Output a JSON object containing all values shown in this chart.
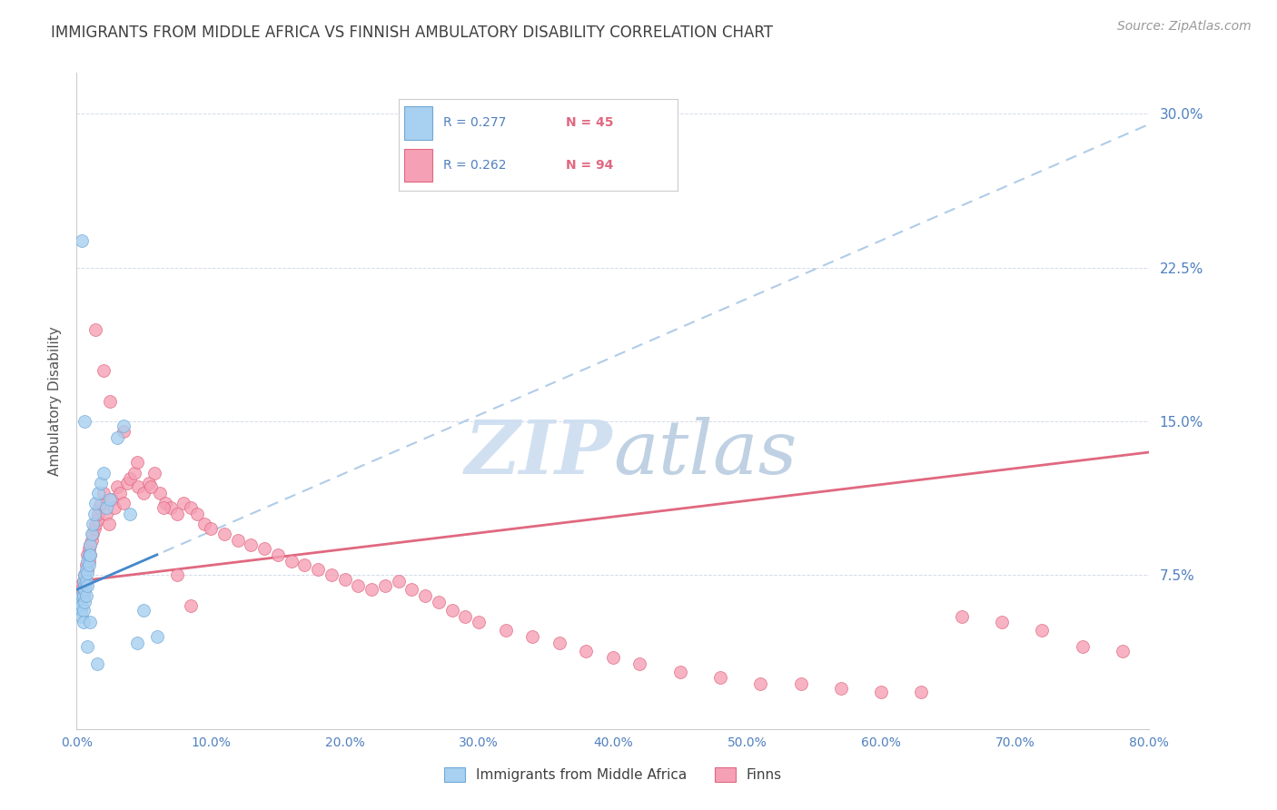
{
  "title": "IMMIGRANTS FROM MIDDLE AFRICA VS FINNISH AMBULATORY DISABILITY CORRELATION CHART",
  "source": "Source: ZipAtlas.com",
  "ylabel": "Ambulatory Disability",
  "xlim": [
    0.0,
    0.8
  ],
  "ylim": [
    0.0,
    0.32
  ],
  "xticks": [
    0.0,
    0.1,
    0.2,
    0.3,
    0.4,
    0.5,
    0.6,
    0.7,
    0.8
  ],
  "yticks": [
    0.0,
    0.075,
    0.15,
    0.225,
    0.3
  ],
  "ytick_labels": [
    "",
    "7.5%",
    "15.0%",
    "22.5%",
    "30.0%"
  ],
  "xtick_labels": [
    "0.0%",
    "10.0%",
    "20.0%",
    "30.0%",
    "40.0%",
    "50.0%",
    "60.0%",
    "70.0%",
    "80.0%"
  ],
  "series1_label": "Immigrants from Middle Africa",
  "series1_R": 0.277,
  "series1_N": 45,
  "series1_color": "#a8d0f0",
  "series1_edge_color": "#70a8d8",
  "series2_label": "Finns",
  "series2_R": 0.262,
  "series2_N": 94,
  "series2_color": "#f5a0b5",
  "series2_edge_color": "#e06880",
  "trend1_color": "#b0cce8",
  "trend2_color": "#e06880",
  "background_color": "#ffffff",
  "grid_color": "#d0d8e8",
  "title_color": "#404040",
  "tick_color": "#5080c0",
  "legend_R_color": "#5080c0",
  "legend_N_color": "#e06880",
  "watermark_color": "#ccddf0",
  "series1_x": [
    0.002,
    0.003,
    0.003,
    0.004,
    0.004,
    0.004,
    0.005,
    0.005,
    0.005,
    0.005,
    0.005,
    0.006,
    0.006,
    0.006,
    0.006,
    0.007,
    0.007,
    0.007,
    0.008,
    0.008,
    0.008,
    0.009,
    0.009,
    0.01,
    0.01,
    0.011,
    0.012,
    0.013,
    0.014,
    0.016,
    0.018,
    0.02,
    0.022,
    0.025,
    0.03,
    0.035,
    0.04,
    0.045,
    0.05,
    0.06,
    0.004,
    0.006,
    0.008,
    0.01,
    0.015
  ],
  "series1_y": [
    0.06,
    0.062,
    0.058,
    0.065,
    0.06,
    0.055,
    0.068,
    0.072,
    0.065,
    0.058,
    0.052,
    0.07,
    0.075,
    0.068,
    0.062,
    0.078,
    0.072,
    0.065,
    0.082,
    0.076,
    0.07,
    0.085,
    0.08,
    0.09,
    0.085,
    0.095,
    0.1,
    0.105,
    0.11,
    0.115,
    0.12,
    0.125,
    0.108,
    0.112,
    0.142,
    0.148,
    0.105,
    0.042,
    0.058,
    0.045,
    0.238,
    0.15,
    0.04,
    0.052,
    0.032
  ],
  "series2_x": [
    0.002,
    0.003,
    0.004,
    0.005,
    0.005,
    0.006,
    0.006,
    0.007,
    0.007,
    0.008,
    0.008,
    0.009,
    0.009,
    0.01,
    0.01,
    0.011,
    0.012,
    0.013,
    0.014,
    0.015,
    0.016,
    0.017,
    0.018,
    0.02,
    0.022,
    0.024,
    0.026,
    0.028,
    0.03,
    0.032,
    0.035,
    0.038,
    0.04,
    0.043,
    0.046,
    0.05,
    0.054,
    0.058,
    0.062,
    0.066,
    0.07,
    0.075,
    0.08,
    0.085,
    0.09,
    0.095,
    0.1,
    0.11,
    0.12,
    0.13,
    0.14,
    0.15,
    0.16,
    0.17,
    0.18,
    0.19,
    0.2,
    0.21,
    0.22,
    0.23,
    0.24,
    0.25,
    0.26,
    0.27,
    0.28,
    0.29,
    0.3,
    0.32,
    0.34,
    0.36,
    0.38,
    0.4,
    0.42,
    0.45,
    0.48,
    0.51,
    0.54,
    0.57,
    0.6,
    0.63,
    0.66,
    0.69,
    0.72,
    0.75,
    0.78,
    0.014,
    0.02,
    0.025,
    0.035,
    0.045,
    0.055,
    0.065,
    0.075,
    0.085
  ],
  "series2_y": [
    0.065,
    0.07,
    0.068,
    0.072,
    0.065,
    0.075,
    0.068,
    0.08,
    0.072,
    0.085,
    0.078,
    0.088,
    0.082,
    0.09,
    0.085,
    0.092,
    0.095,
    0.098,
    0.1,
    0.102,
    0.105,
    0.108,
    0.11,
    0.115,
    0.105,
    0.1,
    0.112,
    0.108,
    0.118,
    0.115,
    0.11,
    0.12,
    0.122,
    0.125,
    0.118,
    0.115,
    0.12,
    0.125,
    0.115,
    0.11,
    0.108,
    0.105,
    0.11,
    0.108,
    0.105,
    0.1,
    0.098,
    0.095,
    0.092,
    0.09,
    0.088,
    0.085,
    0.082,
    0.08,
    0.078,
    0.075,
    0.073,
    0.07,
    0.068,
    0.07,
    0.072,
    0.068,
    0.065,
    0.062,
    0.058,
    0.055,
    0.052,
    0.048,
    0.045,
    0.042,
    0.038,
    0.035,
    0.032,
    0.028,
    0.025,
    0.022,
    0.022,
    0.02,
    0.018,
    0.018,
    0.055,
    0.052,
    0.048,
    0.04,
    0.038,
    0.195,
    0.175,
    0.16,
    0.145,
    0.13,
    0.118,
    0.108,
    0.075,
    0.06
  ]
}
